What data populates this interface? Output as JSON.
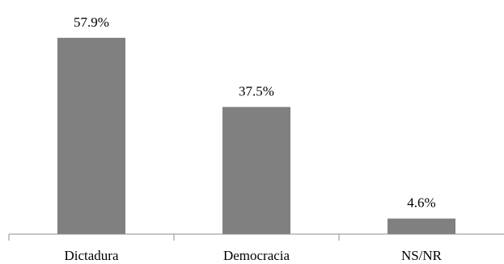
{
  "chart_data": {
    "type": "bar",
    "title": "",
    "xlabel": "",
    "ylabel": "",
    "categories": [
      "Dictadura",
      "Democracia",
      "NS/NR"
    ],
    "values": [
      57.9,
      37.5,
      4.6
    ],
    "data_labels": [
      "57.9%",
      "37.5%",
      "4.6%"
    ],
    "ylim": [
      0,
      60
    ],
    "grid": false,
    "legend": "none",
    "bar_color": "#808080",
    "axis_color": "#8c8c8c"
  }
}
